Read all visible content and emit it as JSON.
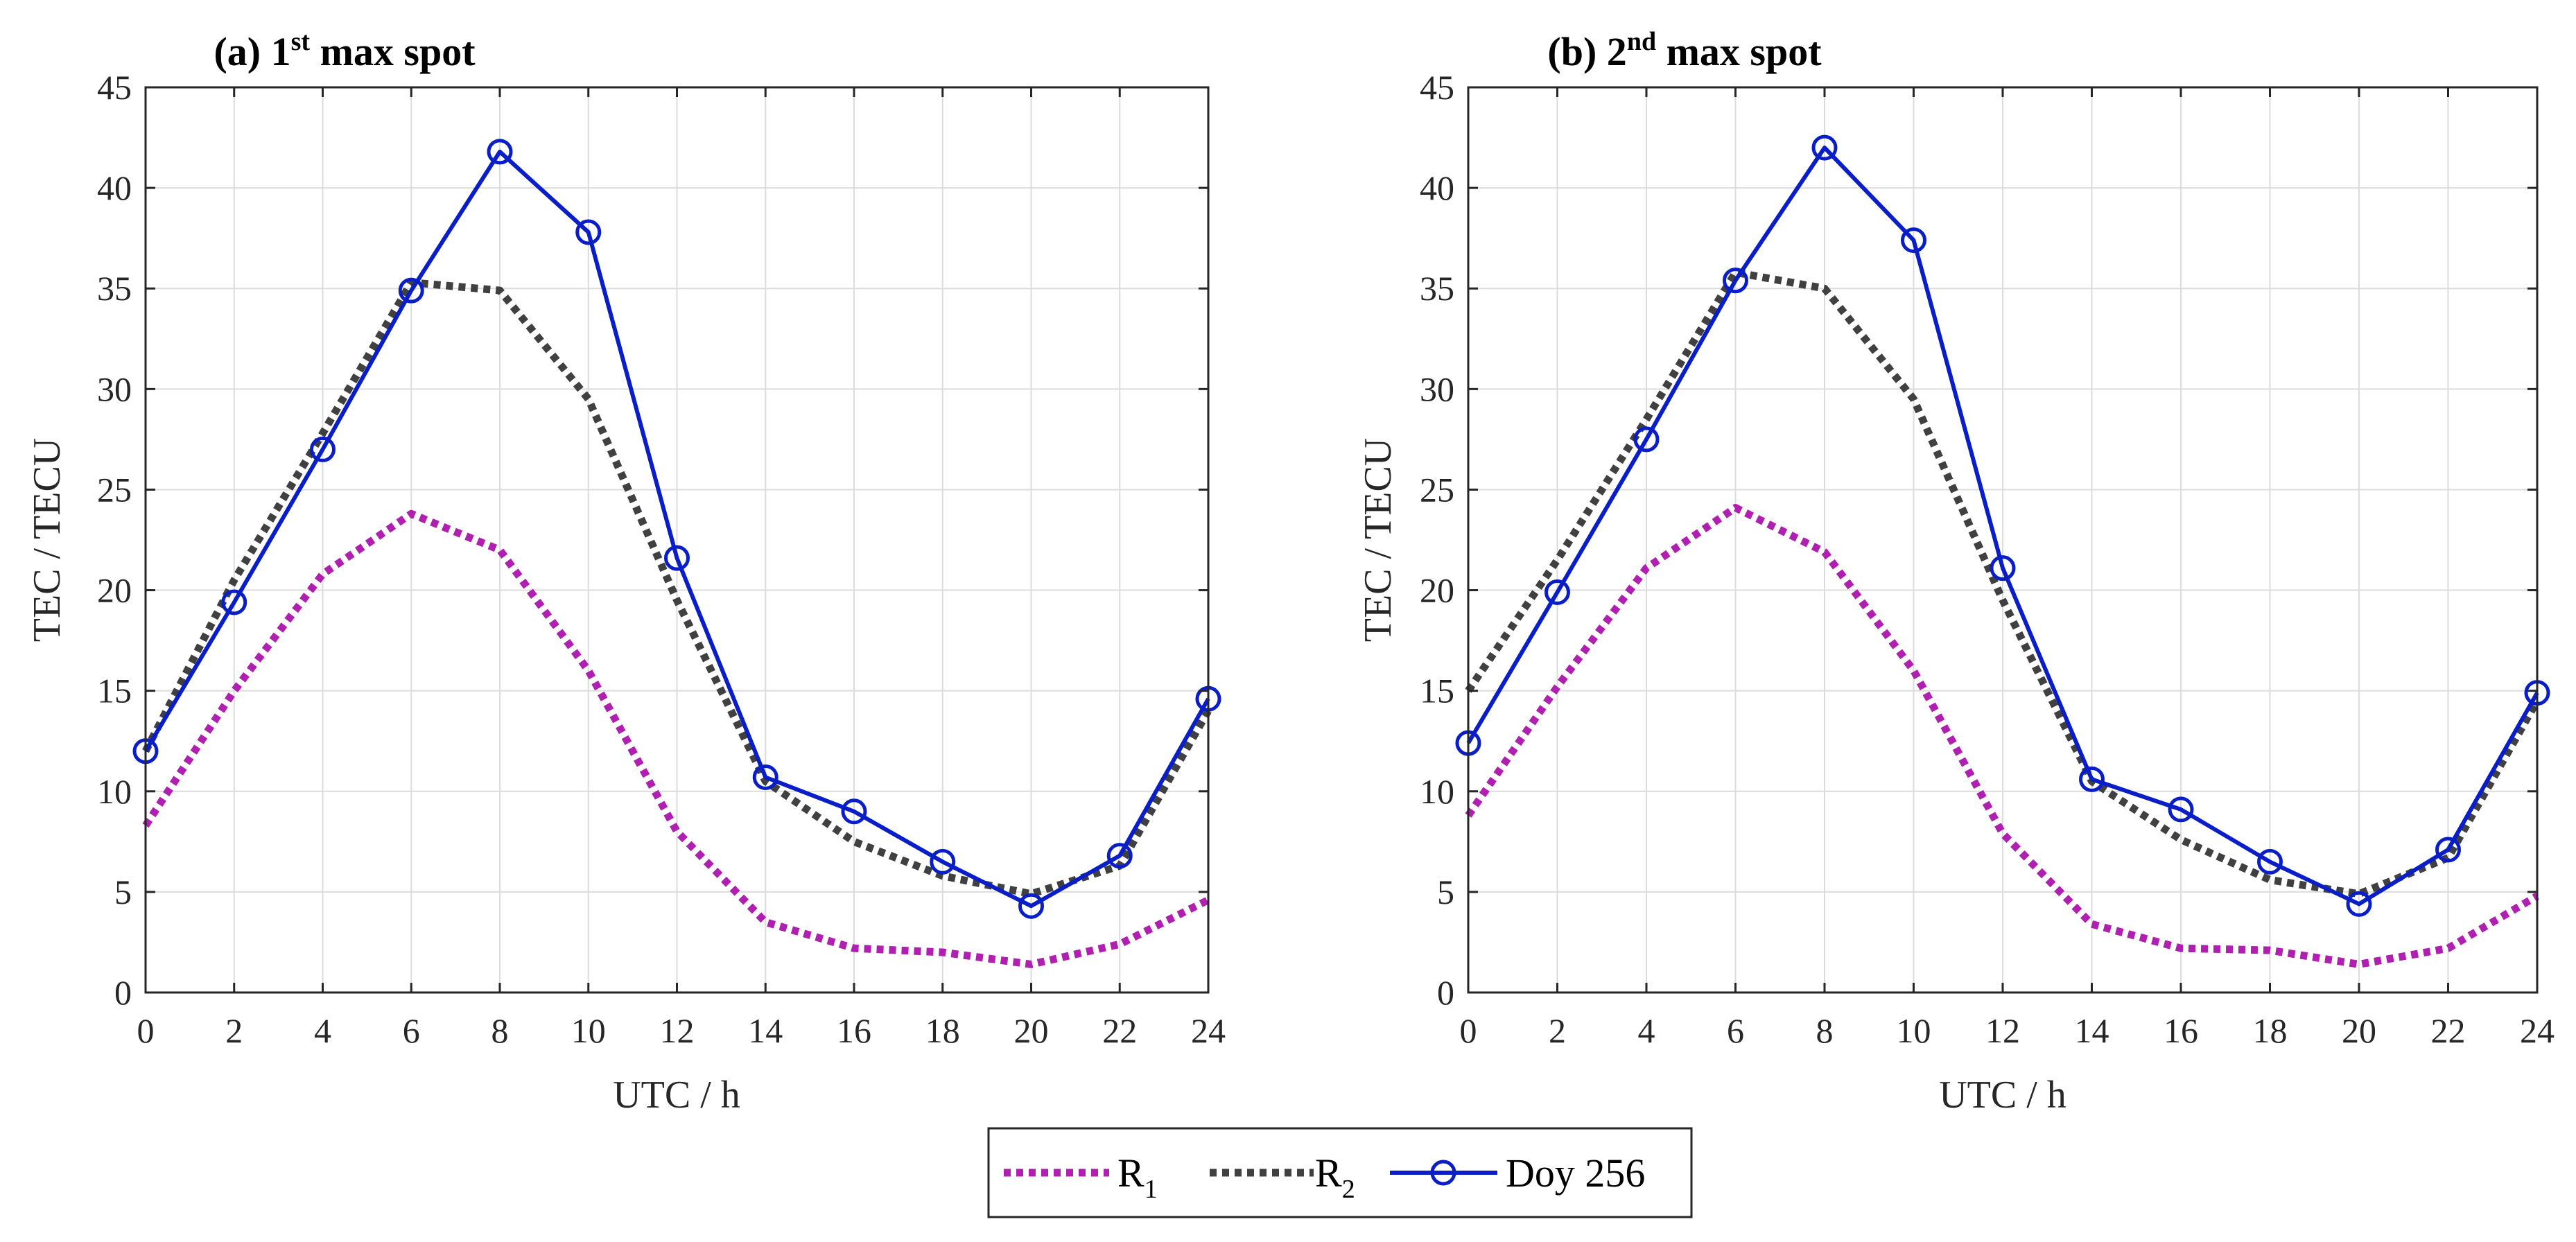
{
  "colors": {
    "r1": "#b020b0",
    "r2": "#404040",
    "doy": "#0a1ec8",
    "grid": "#dcdcdc",
    "axis": "#262626"
  },
  "legend": {
    "r1": {
      "base": "R",
      "sub": "1"
    },
    "r2": {
      "base": "R",
      "sub": "2"
    },
    "doy": "Doy 256"
  },
  "chart_data": [
    {
      "type": "line",
      "title": {
        "prefix": "(a) 1",
        "sup": "st",
        "suffix": " max spot"
      },
      "xlabel": "UTC / h",
      "ylabel": "TEC / TECU",
      "xlim": [
        0,
        24
      ],
      "ylim": [
        0,
        45
      ],
      "xticks": [
        "0",
        "2",
        "4",
        "6",
        "8",
        "10",
        "12",
        "14",
        "16",
        "18",
        "20",
        "22",
        "24"
      ],
      "yticks": [
        "0",
        "5",
        "10",
        "15",
        "20",
        "25",
        "30",
        "35",
        "40",
        "45"
      ],
      "grid": true,
      "series": [
        {
          "name": "R1",
          "style": "dotted",
          "x": [
            0,
            2,
            4,
            6,
            8,
            10,
            12,
            14,
            16,
            18,
            20,
            22,
            24
          ],
          "values": [
            8.3,
            15.0,
            20.8,
            23.8,
            22.0,
            16.0,
            8.0,
            3.5,
            2.2,
            2.0,
            1.4,
            2.4,
            4.6
          ]
        },
        {
          "name": "R2",
          "style": "dotted",
          "x": [
            0,
            2,
            4,
            6,
            8,
            10,
            12,
            14,
            16,
            18,
            20,
            22,
            24
          ],
          "values": [
            12.0,
            20.5,
            27.8,
            35.3,
            34.9,
            29.5,
            19.5,
            10.5,
            7.5,
            5.8,
            4.9,
            6.3,
            14.0
          ]
        },
        {
          "name": "Doy 256",
          "style": "solid-circle",
          "x": [
            0,
            2,
            4,
            6,
            8,
            10,
            12,
            14,
            16,
            18,
            20,
            22,
            24
          ],
          "values": [
            12.0,
            19.4,
            27.0,
            34.9,
            41.8,
            37.8,
            21.6,
            10.7,
            9.0,
            6.5,
            4.3,
            6.8,
            14.6
          ]
        }
      ]
    },
    {
      "type": "line",
      "title": {
        "prefix": "(b) 2",
        "sup": "nd",
        "suffix": " max spot"
      },
      "xlabel": "UTC / h",
      "ylabel": "TEC / TECU",
      "xlim": [
        0,
        24
      ],
      "ylim": [
        0,
        45
      ],
      "xticks": [
        "0",
        "2",
        "4",
        "6",
        "8",
        "10",
        "12",
        "14",
        "16",
        "18",
        "20",
        "22",
        "24"
      ],
      "yticks": [
        "0",
        "5",
        "10",
        "15",
        "20",
        "25",
        "30",
        "35",
        "40",
        "45"
      ],
      "grid": true,
      "series": [
        {
          "name": "R1",
          "style": "dotted",
          "x": [
            0,
            2,
            4,
            6,
            8,
            10,
            12,
            14,
            16,
            18,
            20,
            22,
            24
          ],
          "values": [
            8.8,
            15.2,
            21.1,
            24.1,
            21.9,
            16.0,
            7.9,
            3.4,
            2.2,
            2.1,
            1.4,
            2.2,
            4.8
          ]
        },
        {
          "name": "R2",
          "style": "dotted",
          "x": [
            0,
            2,
            4,
            6,
            8,
            10,
            12,
            14,
            16,
            18,
            20,
            22,
            24
          ],
          "values": [
            15.0,
            21.5,
            28.5,
            35.8,
            35.0,
            29.5,
            19.5,
            10.5,
            7.6,
            5.6,
            4.9,
            6.7,
            14.5
          ]
        },
        {
          "name": "Doy 256",
          "style": "solid-circle",
          "x": [
            0,
            2,
            4,
            6,
            8,
            10,
            12,
            14,
            16,
            18,
            20,
            22,
            24
          ],
          "values": [
            12.4,
            19.9,
            27.5,
            35.4,
            42.0,
            37.4,
            21.1,
            10.6,
            9.1,
            6.5,
            4.4,
            7.1,
            14.9
          ]
        }
      ]
    }
  ]
}
